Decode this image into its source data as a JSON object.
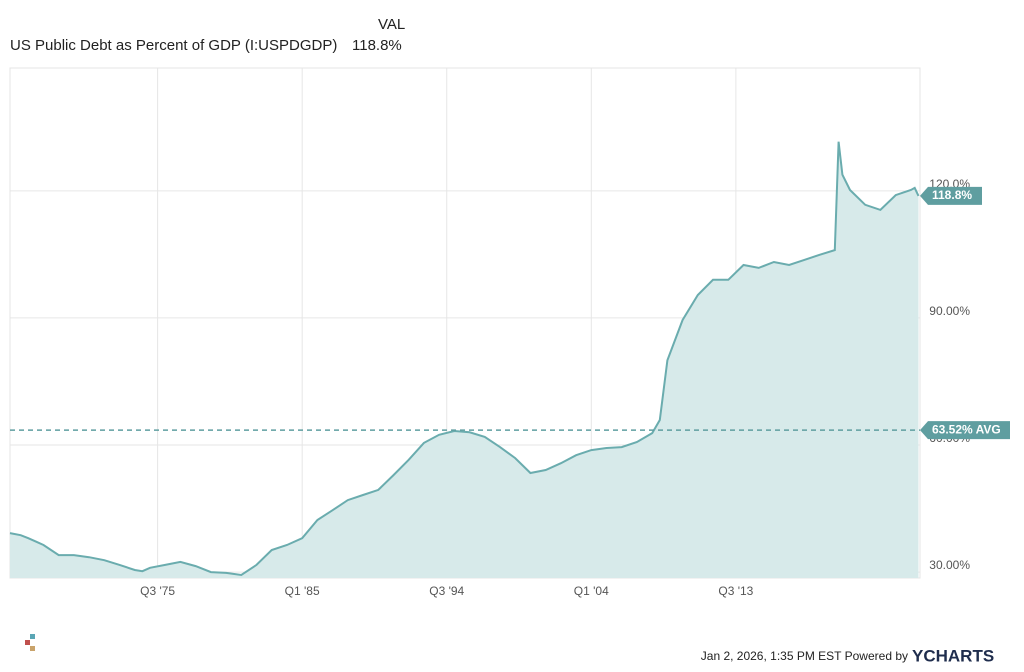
{
  "chart_data": {
    "type": "area",
    "value_header": "VAL",
    "value_display": "118.8%",
    "xlim": [
      1965.8,
      2025.6
    ],
    "xticks": [
      {
        "value": 1975.5,
        "label": "Q3 '75"
      },
      {
        "value": 1985.0,
        "label": "Q1 '85"
      },
      {
        "value": 1994.5,
        "label": "Q3 '94"
      },
      {
        "value": 2004.0,
        "label": "Q1 '04"
      },
      {
        "value": 2013.5,
        "label": "Q3 '13"
      }
    ],
    "ylim": [
      28.6,
      149
    ],
    "yticks": [
      {
        "value": 30,
        "label": "30.00%"
      },
      {
        "value": 60,
        "label": "60.00%"
      },
      {
        "value": 90,
        "label": "90.00%"
      },
      {
        "value": 120,
        "label": "120.0%"
      }
    ],
    "grid": true,
    "series": [
      {
        "name": "US Public Debt as Percent of GDP (I:USPDGDP)",
        "color": "#6aacae",
        "fill": "#d7eaea",
        "x": [
          1965.8,
          1966.5,
          1967,
          1967.5,
          1968,
          1969,
          1970,
          1971,
          1972,
          1973,
          1974,
          1974.5,
          1975,
          1976,
          1977,
          1978,
          1979,
          1980,
          1981,
          1982,
          1983,
          1984,
          1985,
          1986,
          1987,
          1988,
          1989,
          1990,
          1991,
          1992,
          1993,
          1994,
          1995,
          1996,
          1997,
          1998,
          1999,
          2000,
          2001,
          2002,
          2003,
          2004,
          2005,
          2006,
          2007,
          2008,
          2008.5,
          2009,
          2010,
          2011,
          2012,
          2013,
          2014,
          2015,
          2016,
          2017,
          2018,
          2019,
          2020.0,
          2020.25,
          2020.5,
          2021,
          2022,
          2023,
          2024,
          2025.0,
          2025.25,
          2025.5
        ],
        "values": [
          39.2,
          38.7,
          38,
          37.2,
          36.4,
          34,
          34,
          33.5,
          32.8,
          31.7,
          30.5,
          30.2,
          31,
          31.7,
          32.4,
          31.4,
          30,
          29.8,
          29.3,
          31.7,
          35.2,
          36.4,
          38,
          42.3,
          44.6,
          47,
          48.2,
          49.4,
          52.9,
          56.5,
          60.5,
          62.4,
          63.3,
          63,
          61.9,
          59.5,
          56.9,
          53.4,
          54.1,
          55.7,
          57.6,
          58.8,
          59.3,
          59.5,
          60.7,
          62.8,
          65.9,
          80,
          89.5,
          95.4,
          99,
          99,
          102.5,
          101.8,
          103.2,
          102.5,
          103.7,
          104.9,
          106,
          131.6,
          123.8,
          120.2,
          116.7,
          115.5,
          119,
          120.2,
          120.7,
          118.8
        ]
      }
    ],
    "last_label": "118.8%",
    "avg": {
      "value": 63.52,
      "label": "63.52% AVG"
    },
    "footer": "Jan 2, 2026, 1:35 PM EST Powered by",
    "brand": "YCHARTS"
  }
}
